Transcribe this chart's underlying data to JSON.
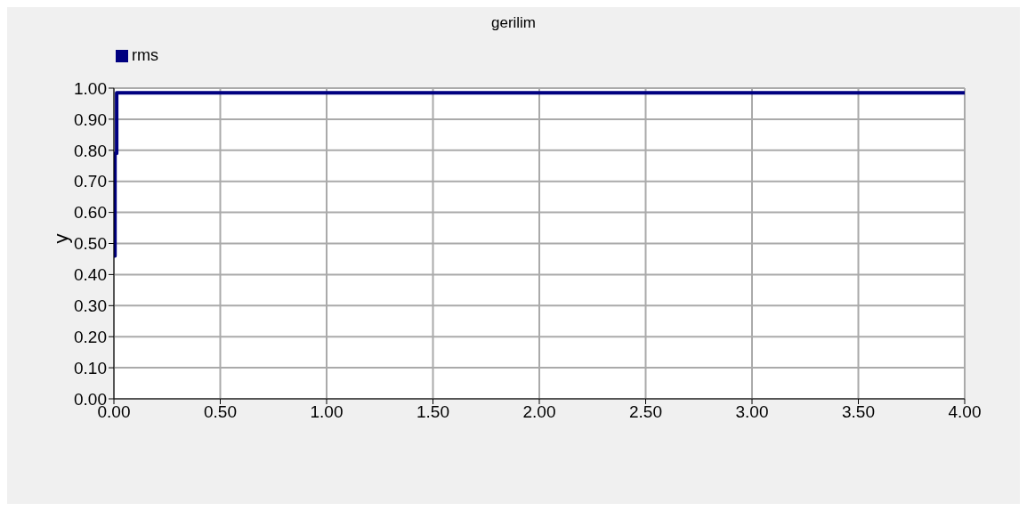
{
  "chart_data": {
    "type": "step",
    "title": "gerilim",
    "ylabel": "y",
    "xlim": [
      0,
      4
    ],
    "xticks": [
      {
        "value": 0,
        "label": "0.00"
      },
      {
        "value": 0.5,
        "label": "0.50"
      },
      {
        "value": 1,
        "label": "1.00"
      },
      {
        "value": 1.5,
        "label": "1.50"
      },
      {
        "value": 2,
        "label": "2.00"
      },
      {
        "value": 2.5,
        "label": "2.50"
      },
      {
        "value": 3,
        "label": "3.00"
      },
      {
        "value": 3.5,
        "label": "3.50"
      },
      {
        "value": 4,
        "label": "4.00"
      }
    ],
    "ylim": [
      0,
      1
    ],
    "yticks": [
      {
        "value": 0,
        "label": "0.00"
      },
      {
        "value": 0.1,
        "label": "0.10"
      },
      {
        "value": 0.2,
        "label": "0.20"
      },
      {
        "value": 0.3,
        "label": "0.30"
      },
      {
        "value": 0.4,
        "label": "0.40"
      },
      {
        "value": 0.5,
        "label": "0.50"
      },
      {
        "value": 0.6,
        "label": "0.60"
      },
      {
        "value": 0.7,
        "label": "0.70"
      },
      {
        "value": 0.8,
        "label": "0.80"
      },
      {
        "value": 0.9,
        "label": "0.90"
      },
      {
        "value": 1,
        "label": "1.00"
      }
    ],
    "grid": true,
    "legend": "top left",
    "marker": "none",
    "series": [
      {
        "name": "rms",
        "color": "#000080",
        "x": [
          0,
          0.005,
          0.013,
          4
        ],
        "values": [
          0.46,
          0.79,
          0.985,
          0.985
        ]
      }
    ]
  }
}
